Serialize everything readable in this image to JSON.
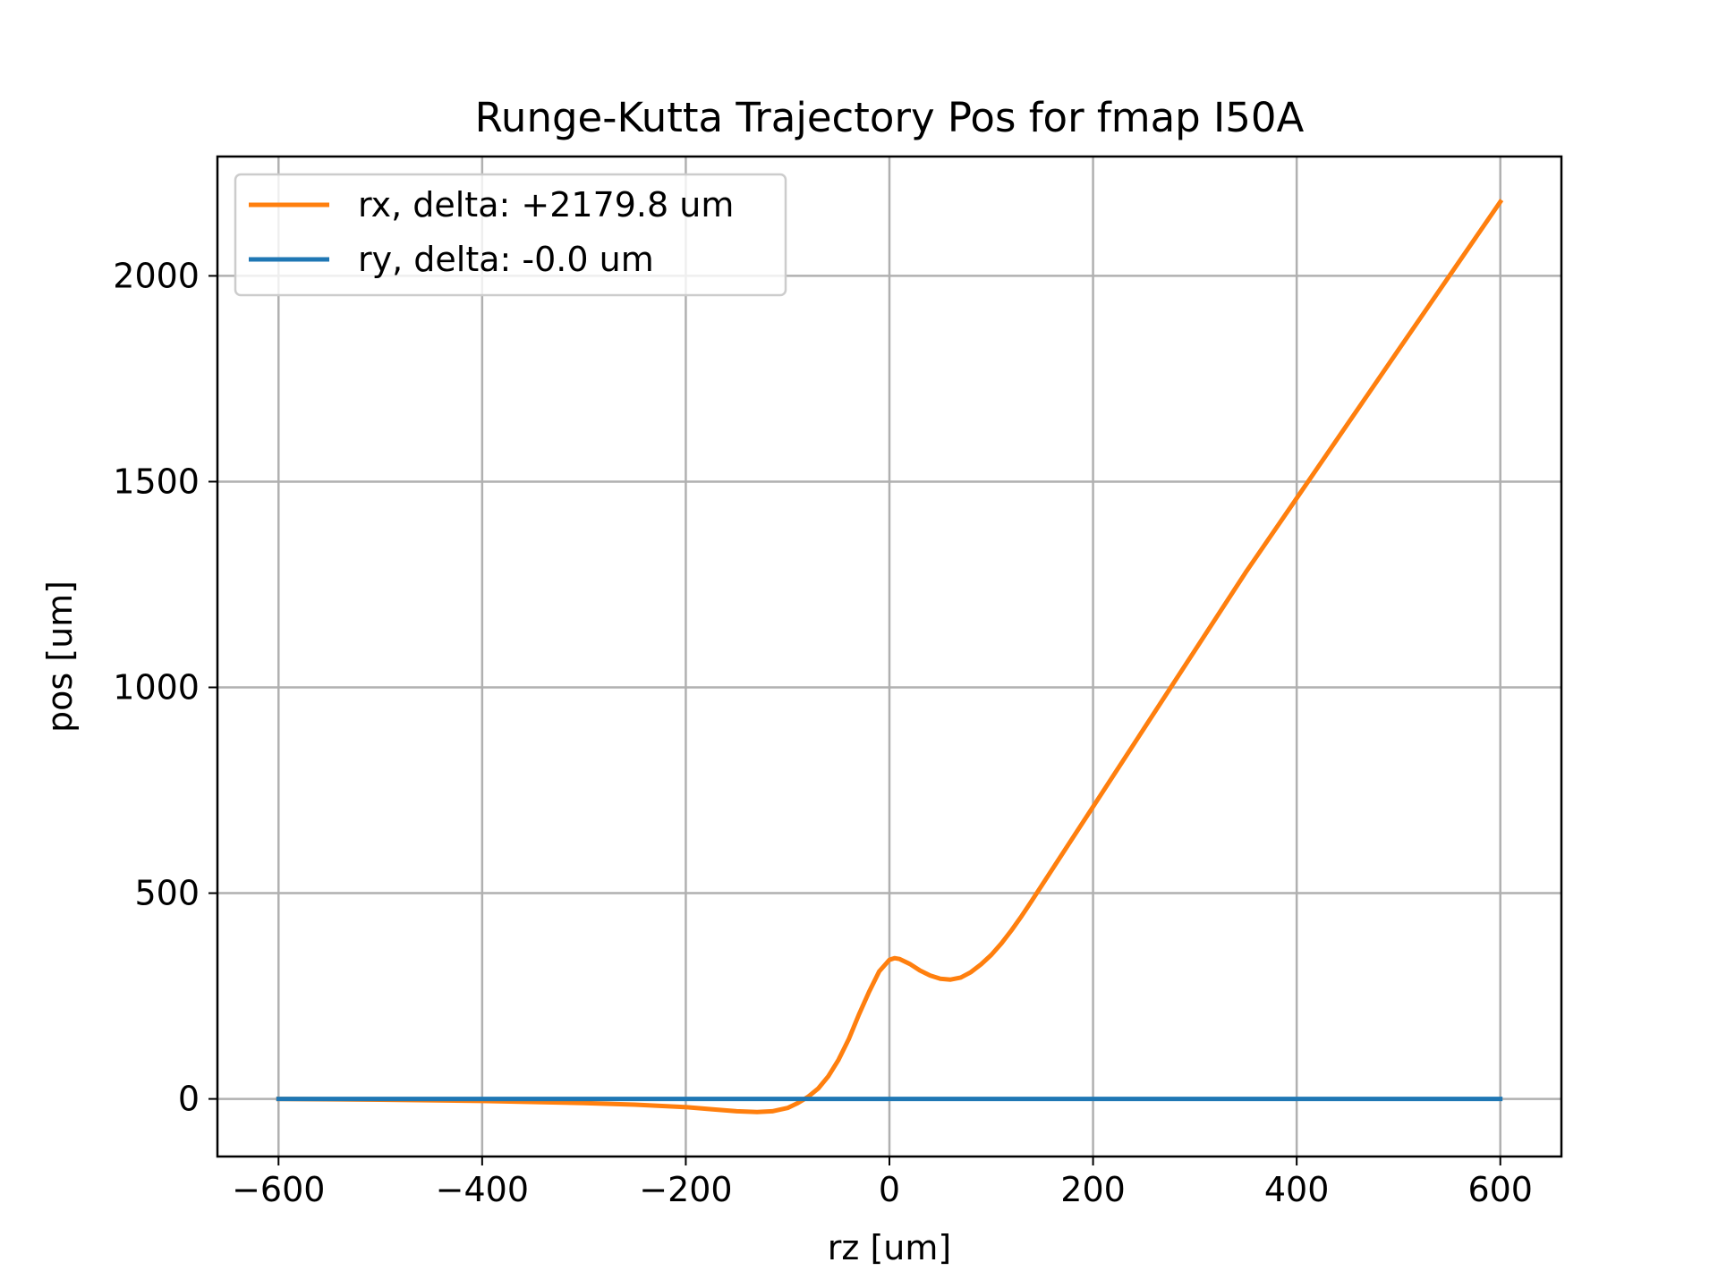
{
  "chart_data": {
    "type": "line",
    "title": "Runge-Kutta Trajectory Pos for fmap I50A",
    "xlabel": "rz [um]",
    "ylabel": "pos [um]",
    "xlim": [
      -660,
      660
    ],
    "ylim": [
      -140,
      2290
    ],
    "xticks": [
      -600,
      -400,
      -200,
      0,
      200,
      400,
      600
    ],
    "xtick_labels": [
      "−600",
      "−400",
      "−200",
      "0",
      "200",
      "400",
      "600"
    ],
    "yticks": [
      0,
      500,
      1000,
      1500,
      2000
    ],
    "ytick_labels": [
      "0",
      "500",
      "1000",
      "1500",
      "2000"
    ],
    "grid": true,
    "legend_position": "top-left",
    "series": [
      {
        "name": "rx, delta: +2179.8 um",
        "color": "#ff7f0e",
        "x": [
          -600,
          -500,
          -400,
          -300,
          -250,
          -200,
          -175,
          -150,
          -130,
          -115,
          -100,
          -90,
          -80,
          -70,
          -60,
          -50,
          -40,
          -30,
          -20,
          -10,
          0,
          5,
          10,
          20,
          30,
          40,
          50,
          60,
          70,
          80,
          90,
          100,
          110,
          120,
          130,
          140,
          150,
          175,
          200,
          250,
          300,
          350,
          400,
          450,
          500,
          550,
          600
        ],
        "y": [
          0,
          -2,
          -5,
          -10,
          -14,
          -20,
          -25,
          -30,
          -32,
          -30,
          -22,
          -10,
          5,
          25,
          55,
          95,
          145,
          205,
          260,
          310,
          338,
          342,
          340,
          328,
          312,
          300,
          292,
          290,
          295,
          308,
          327,
          350,
          378,
          410,
          445,
          482,
          520,
          615,
          710,
          900,
          1090,
          1280,
          1460,
          1640,
          1820,
          2000,
          2180
        ]
      },
      {
        "name": "ry, delta: -0.0 um",
        "color": "#1f77b4",
        "x": [
          -600,
          600
        ],
        "y": [
          0,
          0
        ]
      }
    ]
  }
}
